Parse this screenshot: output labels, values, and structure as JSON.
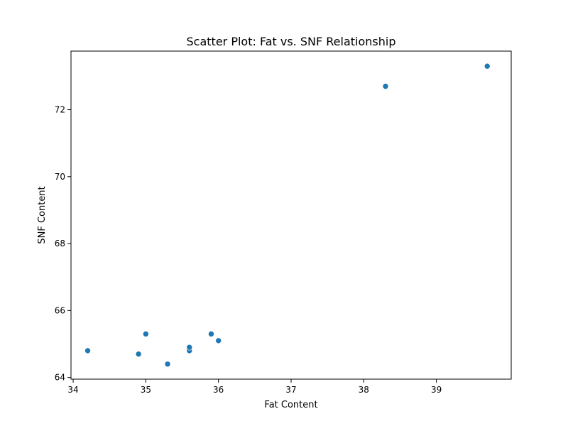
{
  "chart_data": {
    "type": "scatter",
    "title": "Scatter Plot: Fat vs. SNF Relationship",
    "xlabel": "Fat Content",
    "ylabel": "SNF Content",
    "xlim": [
      33.97,
      40.03
    ],
    "ylim": [
      63.95,
      73.75
    ],
    "xticks": [
      34,
      35,
      36,
      37,
      38,
      39
    ],
    "yticks": [
      64,
      66,
      68,
      70,
      72
    ],
    "grid": false,
    "marker_color": "#1f77b4",
    "points": [
      {
        "x": 34.2,
        "y": 64.8
      },
      {
        "x": 34.9,
        "y": 64.7
      },
      {
        "x": 35.0,
        "y": 65.3
      },
      {
        "x": 35.3,
        "y": 64.4
      },
      {
        "x": 35.6,
        "y": 64.8
      },
      {
        "x": 35.6,
        "y": 64.9
      },
      {
        "x": 35.9,
        "y": 65.3
      },
      {
        "x": 36.0,
        "y": 65.1
      },
      {
        "x": 38.3,
        "y": 72.7
      },
      {
        "x": 39.7,
        "y": 73.3
      }
    ]
  }
}
